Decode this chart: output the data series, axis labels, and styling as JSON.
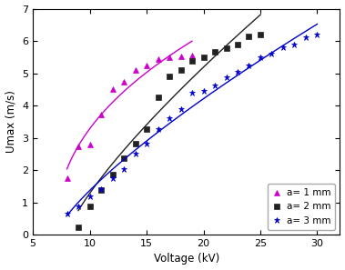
{
  "title": "",
  "xlabel": "Voltage (kV)",
  "ylabel": "Umax (m/s)",
  "xlim": [
    5,
    32
  ],
  "ylim": [
    0,
    7
  ],
  "xticks": [
    5,
    10,
    15,
    20,
    25,
    30
  ],
  "yticks": [
    0,
    1,
    2,
    3,
    4,
    5,
    6,
    7
  ],
  "series": [
    {
      "label": "a= 1 mm",
      "color": "#cc00cc",
      "marker": "^",
      "markersize": 4,
      "x": [
        8,
        9,
        10,
        11,
        12,
        13,
        14,
        15,
        16,
        17,
        18,
        19
      ],
      "y": [
        1.75,
        2.72,
        2.8,
        3.72,
        4.5,
        4.72,
        5.1,
        5.25,
        5.45,
        5.5,
        5.52,
        5.55
      ]
    },
    {
      "label": "a= 2 mm",
      "color": "#222222",
      "marker": "s",
      "markersize": 4,
      "x": [
        9,
        10,
        11,
        12,
        13,
        14,
        15,
        16,
        17,
        18,
        19,
        20,
        21,
        22,
        23,
        24,
        25
      ],
      "y": [
        0.22,
        0.88,
        1.38,
        1.85,
        2.38,
        2.82,
        3.28,
        4.25,
        4.9,
        5.1,
        5.38,
        5.5,
        5.65,
        5.78,
        5.9,
        6.15,
        6.2
      ]
    },
    {
      "label": "a= 3 mm",
      "color": "#0000cc",
      "marker": "*",
      "markersize": 4.5,
      "x": [
        8,
        9,
        10,
        11,
        12,
        13,
        14,
        15,
        16,
        17,
        18,
        19,
        20,
        21,
        22,
        23,
        24,
        25,
        26,
        27,
        28,
        29,
        30
      ],
      "y": [
        0.65,
        0.88,
        1.18,
        1.4,
        1.75,
        2.02,
        2.5,
        2.82,
        3.28,
        3.62,
        3.9,
        4.4,
        4.45,
        4.62,
        4.88,
        5.05,
        5.25,
        5.5,
        5.62,
        5.8,
        5.9,
        6.12,
        6.2
      ]
    }
  ],
  "background_color": "#ffffff",
  "legend_loc": "lower right",
  "figsize": [
    3.79,
    2.97
  ],
  "dpi": 100
}
